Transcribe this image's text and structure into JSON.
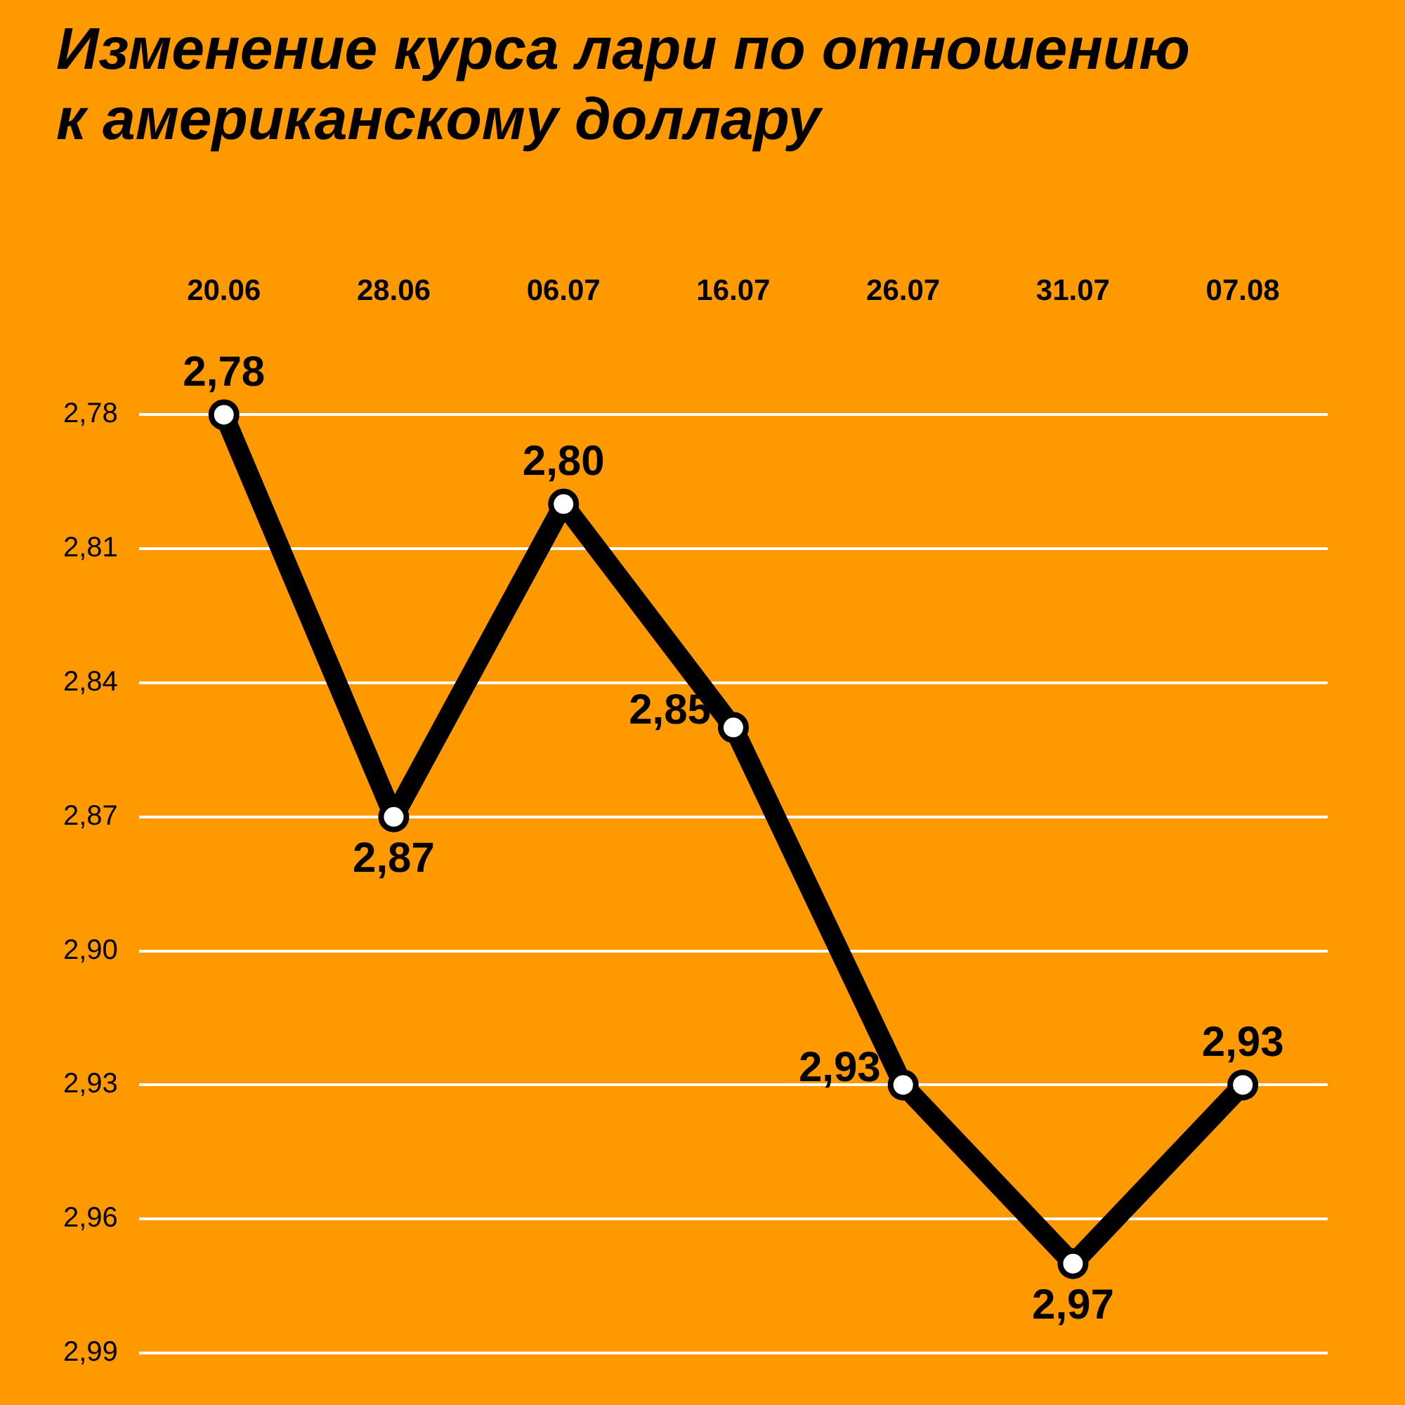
{
  "chart_data": {
    "type": "line",
    "title": "Изменение курса лари по отношению к американскому доллару",
    "categories": [
      "20.06",
      "28.06",
      "06.07",
      "16.07",
      "26.07",
      "31.07",
      "07.08"
    ],
    "series": [
      {
        "color": "#000000",
        "values": [
          2.78,
          2.87,
          2.8,
          2.85,
          2.93,
          2.97,
          2.93
        ],
        "value_labels": [
          "2,78",
          "2,87",
          "2,80",
          "2,85",
          "2,93",
          "2,97",
          "2,93"
        ]
      }
    ],
    "ylim": [
      2.99,
      2.78
    ],
    "yticks": [
      {
        "value": 2.78,
        "label": "2,78"
      },
      {
        "value": 2.81,
        "label": "2,81"
      },
      {
        "value": 2.84,
        "label": "2,84"
      },
      {
        "value": 2.87,
        "label": "2,87"
      },
      {
        "value": 2.9,
        "label": "2,90"
      },
      {
        "value": 2.93,
        "label": "2,93"
      },
      {
        "value": 2.96,
        "label": "2,96"
      },
      {
        "value": 2.99,
        "label": "2,99"
      }
    ],
    "grid": "y",
    "marker": "circle",
    "line_style": "solid",
    "legend": false
  }
}
